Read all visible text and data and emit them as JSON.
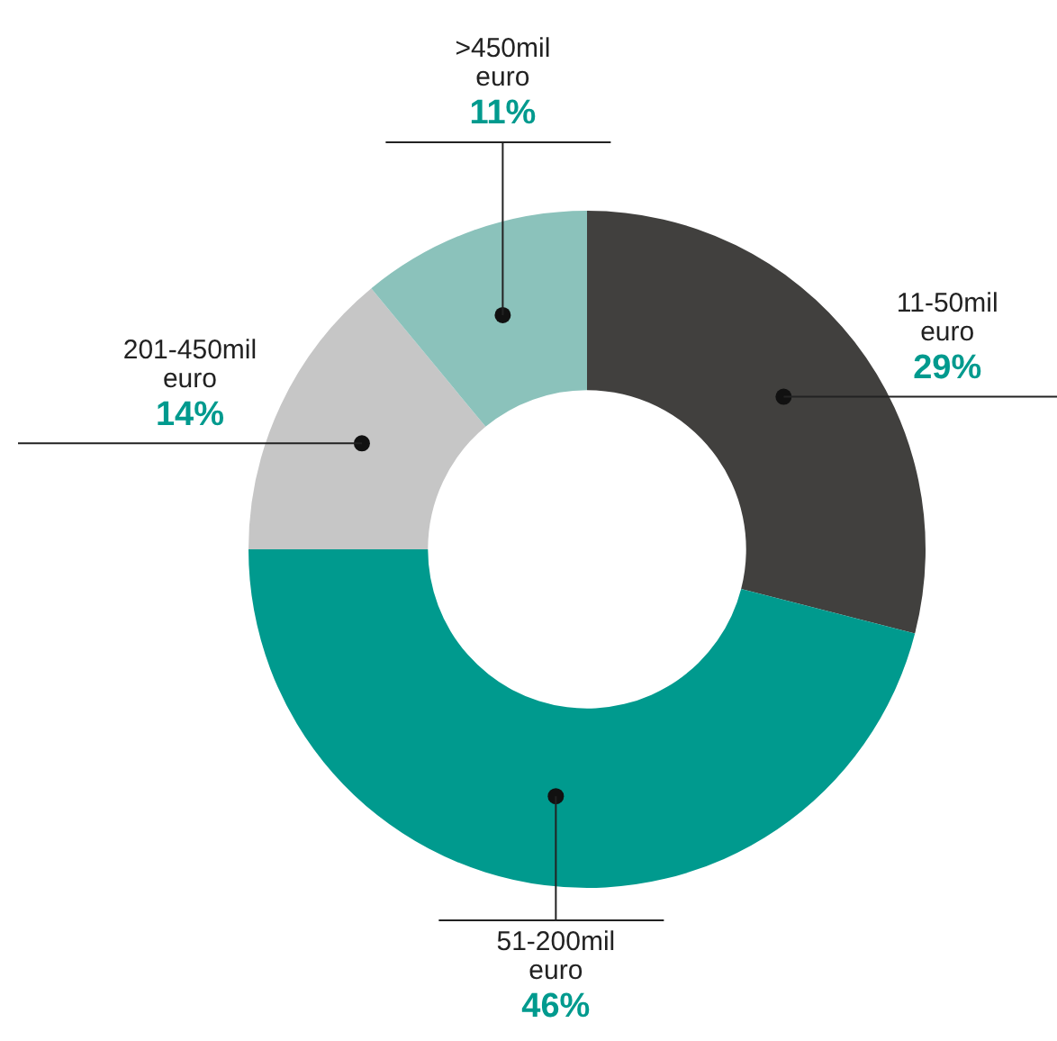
{
  "chart_data": {
    "type": "donut",
    "categories": [
      "11-50mil euro",
      "51-200mil euro",
      "201-450mil euro",
      ">450mil euro"
    ],
    "values": [
      29,
      46,
      14,
      11
    ],
    "value_labels": [
      "29%",
      "46%",
      "14%",
      "11%"
    ],
    "colors": [
      "#41403e",
      "#009a8e",
      "#c6c6c6",
      "#8bc2bb"
    ],
    "legend": false
  }
}
